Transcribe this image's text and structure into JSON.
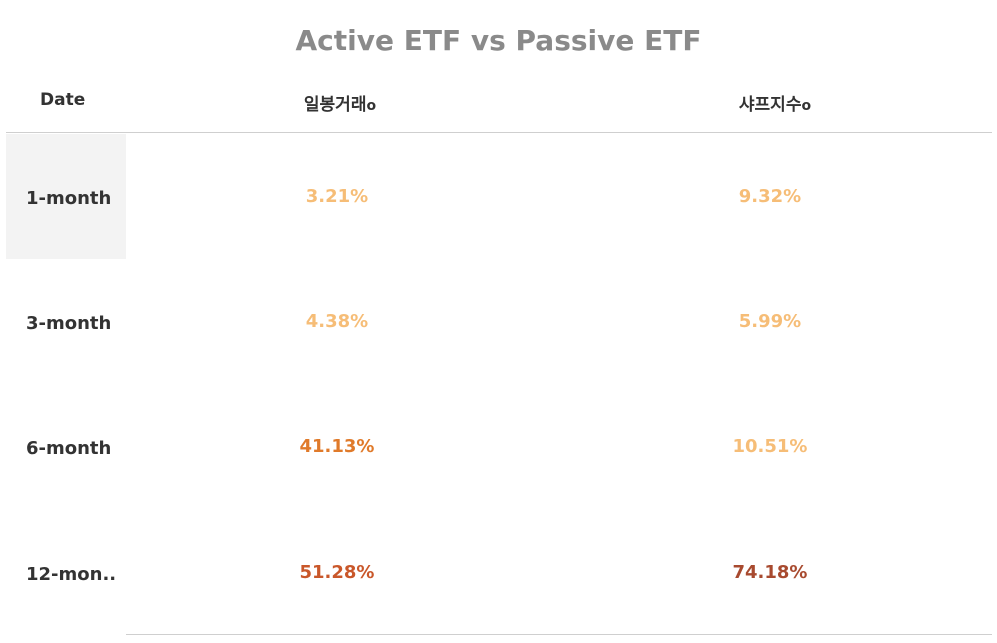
{
  "chart_data": {
    "type": "table",
    "title": "Active ETF vs Passive ETF",
    "columns": [
      "Date",
      "일봉거래",
      "샤프지수"
    ],
    "column_indicator": "o",
    "rows": [
      {
        "date": "1-month",
        "values": [
          "3.21%",
          "9.32%"
        ],
        "colors": [
          "#f6bd77",
          "#f6bd77"
        ]
      },
      {
        "date": "3-month",
        "values": [
          "4.38%",
          "5.99%"
        ],
        "colors": [
          "#f6bd77",
          "#f6bd77"
        ]
      },
      {
        "date": "6-month",
        "values": [
          "41.13%",
          "10.51%"
        ],
        "colors": [
          "#e07a2a",
          "#f6bd77"
        ]
      },
      {
        "date": "12-mon..",
        "values": [
          "51.28%",
          "74.18%"
        ],
        "colors": [
          "#c9572a",
          "#a84a2f"
        ]
      }
    ]
  }
}
